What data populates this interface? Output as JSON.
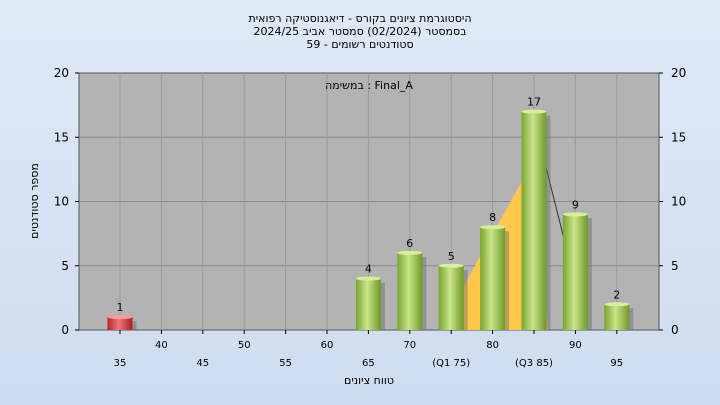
{
  "chart_data": {
    "type": "bar",
    "title_lines": [
      "היסטוגרמת ציונים בקורס - דיאגנוסטיקה רפואית",
      "בסמסטר  (02/2024)  סמסטר אביב 2024/25",
      "סטודנטים רשומים - 59"
    ],
    "subtitle": "במשימה : Final_A",
    "xlabel": "טווח ציונים",
    "ylabel": "מספר סטודנטים",
    "ylim": [
      0,
      20
    ],
    "yticks": [
      0,
      5,
      10,
      15,
      20
    ],
    "categories": [
      "35",
      "40",
      "45",
      "50",
      "55",
      "60",
      "65",
      "70",
      "(Q1 75)",
      "80",
      "(Q3 85)",
      "90",
      "95"
    ],
    "values": [
      1,
      0,
      0,
      0,
      0,
      0,
      4,
      6,
      5,
      8,
      17,
      9,
      2
    ],
    "value_labels": [
      "1",
      "",
      "",
      "",
      "",
      "",
      "4",
      "6",
      "5",
      "8",
      "17",
      "9",
      "2"
    ],
    "highlight_color": "#d9363e",
    "bar_color": "#8cbf3f",
    "quartile_band": {
      "from": "(Q1 75)",
      "to": "(Q3 85)",
      "color": "#ffc84a"
    },
    "grid": true
  }
}
